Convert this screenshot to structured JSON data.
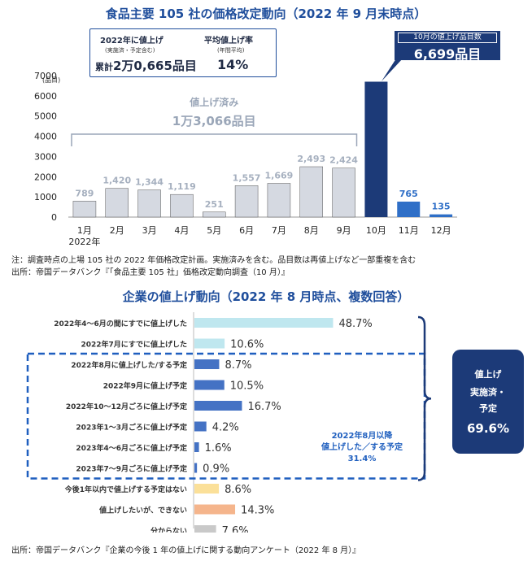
{
  "chart_data": [
    {
      "type": "bar",
      "title": "食品主要 105 社の価格改定動向（2022 年 9 月末時点）",
      "ylabel": "(品目)",
      "ylim": [
        0,
        7000
      ],
      "yticks": [
        "0",
        "1000",
        "2000",
        "3000",
        "4000",
        "5000",
        "6000",
        "7000"
      ],
      "categories": [
        "1月",
        "2月",
        "3月",
        "4月",
        "5月",
        "6月",
        "7月",
        "8月",
        "9月",
        "10月",
        "11月",
        "12月"
      ],
      "year_label": "2022年",
      "values": [
        789,
        1420,
        1344,
        1119,
        251,
        1557,
        1669,
        2493,
        2424,
        6699,
        765,
        135
      ],
      "value_labels": [
        "789",
        "1,420",
        "1,344",
        "1,119",
        "251",
        "1,557",
        "1,669",
        "2,493",
        "2,424",
        "",
        "765",
        "135"
      ],
      "colors": {
        "done": "#d5d9e1",
        "october": "#1c3a78",
        "future": "#2f6fc7",
        "done_label": "#a6b0bf",
        "future_label": "#2f6fc7"
      },
      "info_box": {
        "left_title": "2022年に値上げ",
        "left_sub": "(実施済・予定含む)",
        "left_prefix": "累計",
        "left_value": "2万0,665品目",
        "right_title": "平均値上げ率",
        "right_sub": "(年間平均)",
        "right_value": "14%"
      },
      "october_callout": {
        "label": "10月の値上げ品目数",
        "value": "6,699品目"
      },
      "done_bracket": {
        "label": "値上げ済み",
        "value": "1万3,066品目"
      }
    },
    {
      "type": "bar",
      "orientation": "horizontal",
      "title": "企業の値上げ動向（2022 年 8 月時点、複数回答）",
      "xlim": [
        0,
        100
      ],
      "categories": [
        "2022年4～6月の間にすでに値上げした",
        "2022年7月にすでに値上げした",
        "2022年8月に値上げした/する予定",
        "2022年9月に値上げ予定",
        "2022年10～12月ごろに値上げ予定",
        "2023年1～3月ごろに値上げ予定",
        "2023年4～6月ごろに値上げ予定",
        "2023年7～9月ごろに値上げ予定",
        "今後1年以内で値上げする予定はない",
        "値上げしたいが、できない",
        "分からない"
      ],
      "values": [
        48.7,
        10.6,
        8.7,
        10.5,
        16.7,
        4.2,
        1.6,
        0.9,
        8.6,
        14.3,
        7.6
      ],
      "value_labels": [
        "48.7%",
        "10.6%",
        "8.7%",
        "10.5%",
        "16.7%",
        "4.2%",
        "1.6%",
        "0.9%",
        "8.6%",
        "14.3%",
        "7.6%"
      ],
      "colors": [
        "#bfe7ef",
        "#bfe7ef",
        "#4472c4",
        "#4472c4",
        "#4472c4",
        "#4472c4",
        "#4472c4",
        "#4472c4",
        "#fbe099",
        "#f5b58c",
        "#c9c9c9"
      ],
      "dashed_group_label": [
        "2022年8月以降",
        "値上げした／する予定",
        "31.4%"
      ],
      "summary_box": [
        "値上げ",
        "実施済・",
        "予定",
        "69.6%"
      ]
    }
  ],
  "notes": {
    "note1": "注：調査時点の上場 105 社の 2022 年価格改定計画。実施済みを含む。品目数は再値上げなど一部重複を含む",
    "source1": "出所：帝国データバンク『「食品主要 105 社」価格改定動向調査（10 月）』",
    "source2": "出所：帝国データバンク『企業の今後 1 年の値上げに関する動向アンケート（2022 年 8 月）』"
  }
}
